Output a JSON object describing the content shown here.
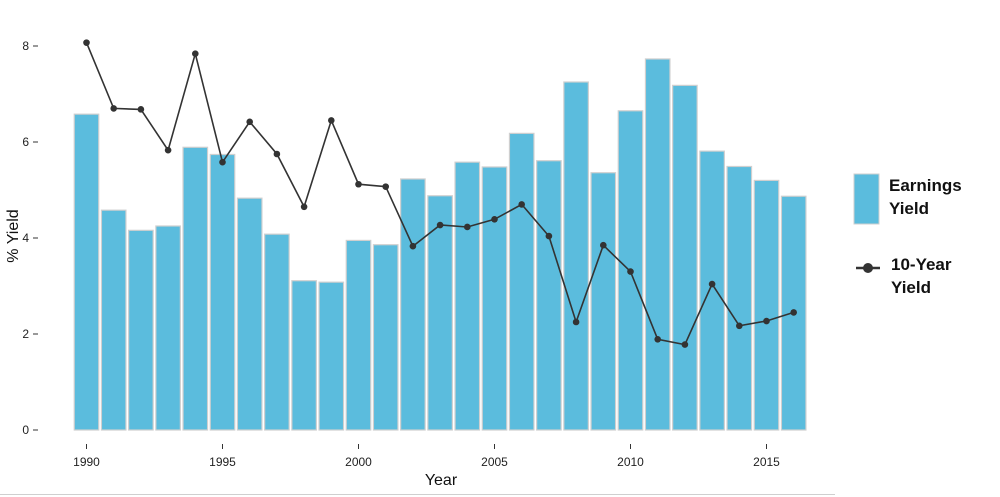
{
  "chart_data": {
    "type": "bar",
    "xlabel": "Year",
    "ylabel": "% Yield",
    "x": [
      1990,
      1991,
      1992,
      1993,
      1994,
      1995,
      1996,
      1997,
      1998,
      1999,
      2000,
      2001,
      2002,
      2003,
      2004,
      2005,
      2006,
      2007,
      2008,
      2009,
      2010,
      2011,
      2012,
      2013,
      2014,
      2015,
      2016
    ],
    "xticks": [
      "1990",
      "1995",
      "2000",
      "2005",
      "2010",
      "2015"
    ],
    "yticks": [
      "0",
      "2",
      "4",
      "6",
      "8"
    ],
    "ylim": [
      0,
      8.1
    ],
    "grid": false,
    "legend_position": "right",
    "series": [
      {
        "name": "Earnings Yield",
        "name_lines": [
          "Earnings",
          "Yield"
        ],
        "kind": "bar",
        "color": "#5bbcdd",
        "edge_color": "#cfcfcf",
        "values": [
          6.58,
          4.58,
          4.16,
          4.25,
          5.89,
          5.74,
          4.83,
          4.08,
          3.11,
          3.08,
          3.95,
          3.86,
          5.23,
          4.88,
          5.58,
          5.48,
          6.18,
          5.61,
          7.25,
          5.36,
          6.65,
          7.73,
          7.18,
          5.81,
          5.49,
          5.2,
          4.87
        ]
      },
      {
        "name": "10-Year Yield",
        "name_lines": [
          "10-Year",
          "Yield"
        ],
        "kind": "line",
        "color": "#333333",
        "values": [
          8.07,
          6.7,
          6.68,
          5.83,
          7.84,
          5.58,
          6.42,
          5.75,
          4.65,
          6.45,
          5.12,
          5.07,
          3.83,
          4.27,
          4.23,
          4.39,
          4.7,
          4.04,
          2.25,
          3.85,
          3.3,
          1.89,
          1.78,
          3.04,
          2.17,
          2.27,
          2.45
        ]
      }
    ]
  }
}
